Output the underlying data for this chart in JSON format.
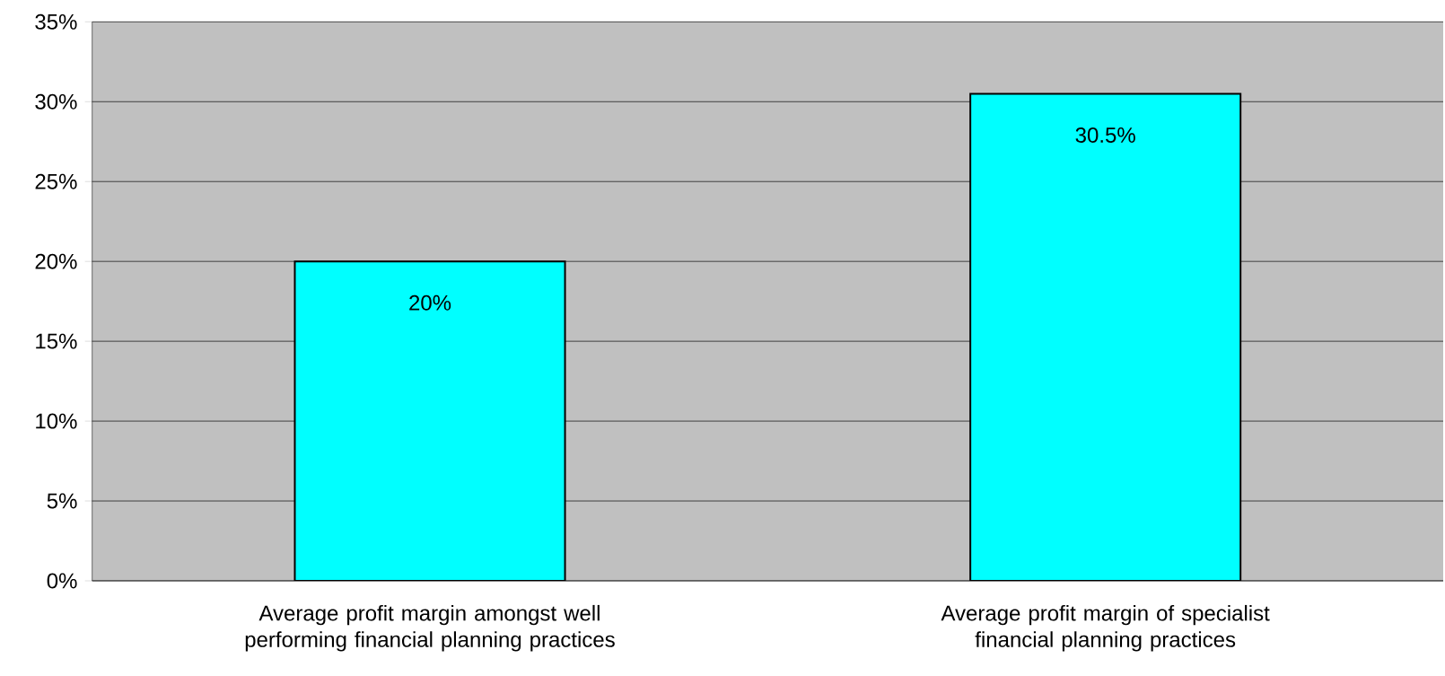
{
  "chart_data": {
    "type": "bar",
    "categories": [
      "Average profit margin amongst well performing financial planning practices",
      "Average profit margin of specialist financial planning practices"
    ],
    "values": [
      20,
      30.5
    ],
    "value_labels": [
      "20%",
      "30.5%"
    ],
    "color": "#00ffff",
    "ylim": [
      0,
      35
    ],
    "yticks": [
      {
        "value": 0,
        "label": "0%"
      },
      {
        "value": 5,
        "label": "5%"
      },
      {
        "value": 10,
        "label": "10%"
      },
      {
        "value": 15,
        "label": "15%"
      },
      {
        "value": 20,
        "label": "20%"
      },
      {
        "value": 25,
        "label": "25%"
      },
      {
        "value": 30,
        "label": "30%"
      },
      {
        "value": 35,
        "label": "35%"
      }
    ],
    "grid": "y"
  }
}
